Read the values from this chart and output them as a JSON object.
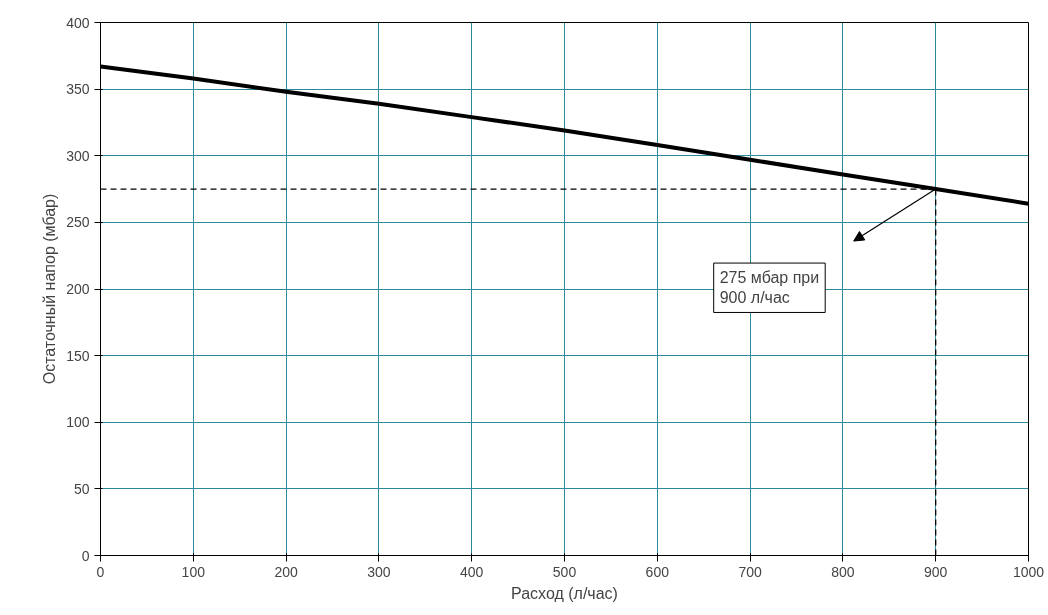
{
  "chart_data": {
    "type": "line",
    "xlabel": "Расход (л/час)",
    "ylabel": "Остаточный напор (мбар)",
    "x": [
      0,
      100,
      200,
      300,
      400,
      500,
      600,
      700,
      800,
      900,
      1000
    ],
    "series": [
      {
        "color": "#000000",
        "values": [
          367,
          358,
          348,
          339,
          329,
          319,
          308,
          297,
          286,
          275,
          264
        ]
      }
    ],
    "xlim": [
      0,
      1000
    ],
    "ylim": [
      0,
      400
    ],
    "xticks": [
      0,
      100,
      200,
      300,
      400,
      500,
      600,
      700,
      800,
      900,
      1000
    ],
    "yticks": [
      0,
      50,
      100,
      150,
      200,
      250,
      300,
      350,
      400
    ],
    "grid": true,
    "marker": "none",
    "line_style": "solid",
    "ref_lines": [
      {
        "axis": "x",
        "value": 900,
        "line_style": "dashed",
        "color": "#000000"
      },
      {
        "axis": "y",
        "value": 275,
        "line_style": "dashed",
        "color": "#000000"
      }
    ],
    "annotations": [
      "275 мбар при\n900 л/час"
    ]
  }
}
